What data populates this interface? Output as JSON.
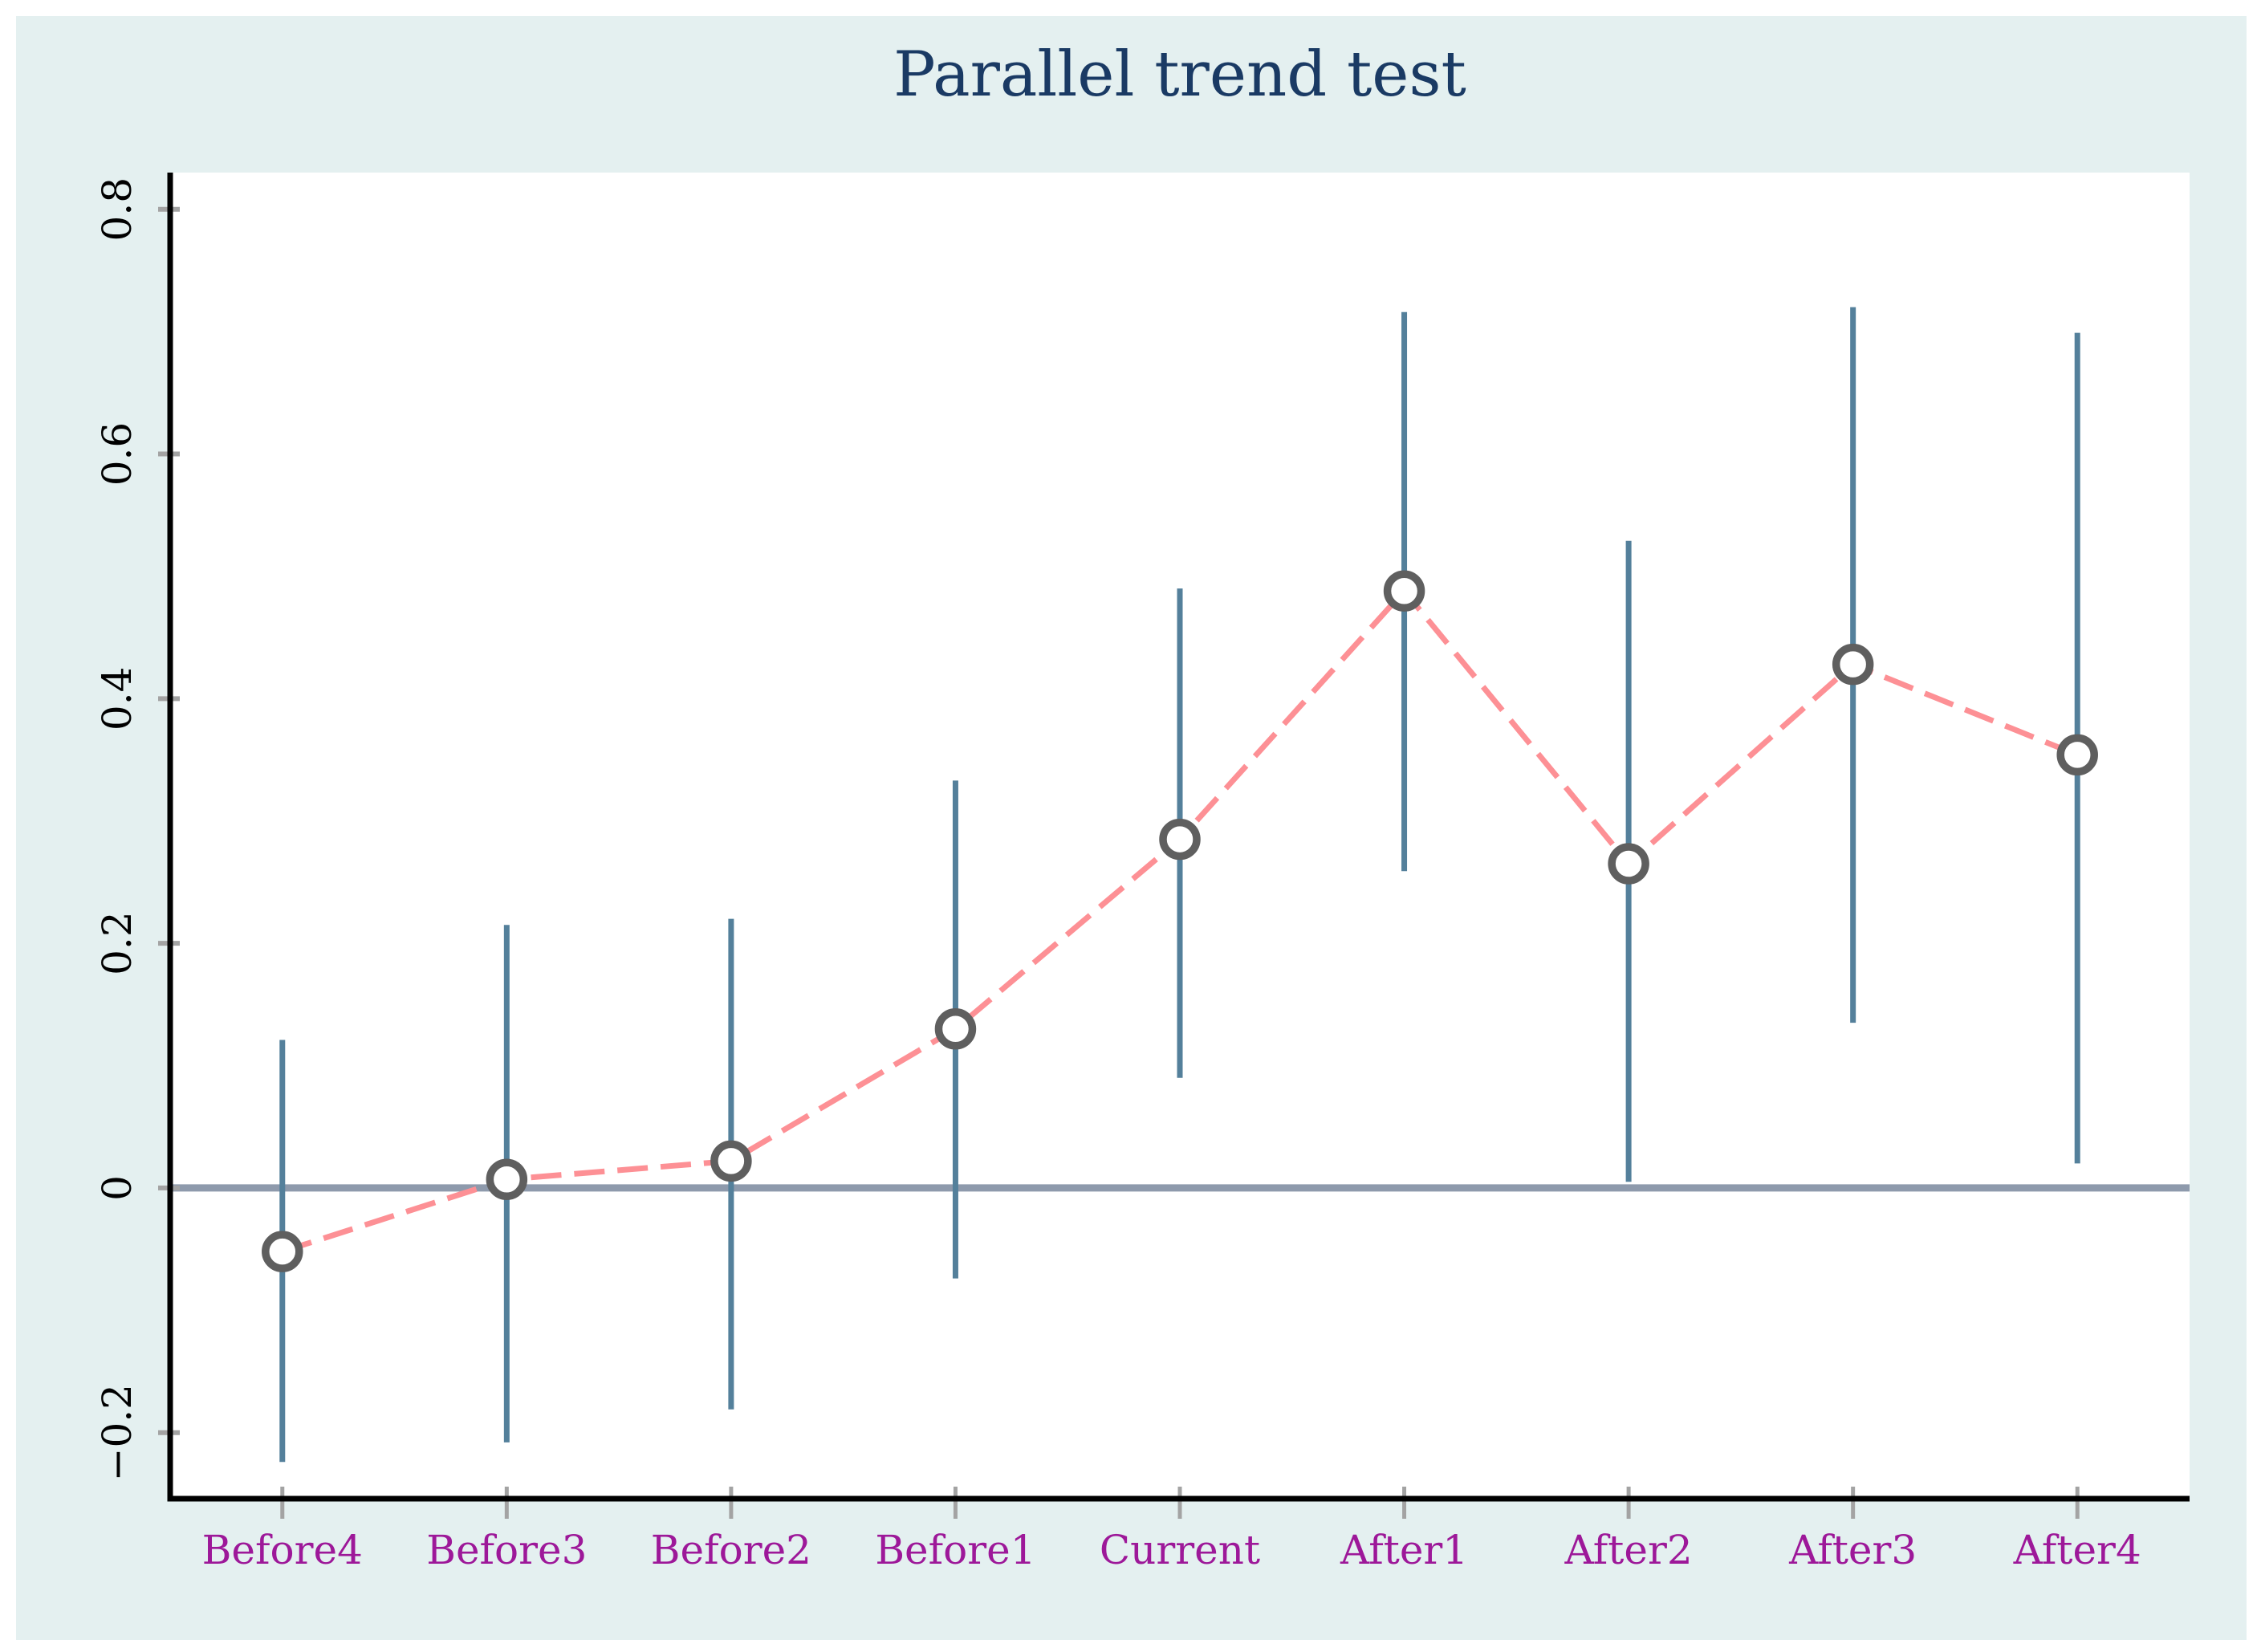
{
  "chart_data": {
    "type": "line",
    "subtype": "coefficient-plot-with-confidence-intervals",
    "title": "Parallel trend test",
    "categories": [
      "Before4",
      "Before3",
      "Before2",
      "Before1",
      "Current",
      "After1",
      "After2",
      "After3",
      "After4"
    ],
    "series": [
      {
        "name": "estimate",
        "role": "point",
        "values": [
          -0.052,
          0.007,
          0.022,
          0.13,
          0.285,
          0.488,
          0.265,
          0.428,
          0.354
        ]
      },
      {
        "name": "ci_lower",
        "role": "ci_lower",
        "values": [
          -0.224,
          -0.208,
          -0.181,
          -0.074,
          0.09,
          0.259,
          0.005,
          0.135,
          0.02
        ]
      },
      {
        "name": "ci_upper",
        "role": "ci_upper",
        "values": [
          0.121,
          0.215,
          0.22,
          0.333,
          0.49,
          0.716,
          0.529,
          0.72,
          0.699
        ]
      }
    ],
    "xlabel": "",
    "ylabel": "",
    "ylim": [
      -0.254,
      0.83
    ],
    "yticks": [
      -0.2,
      0,
      0.2,
      0.4,
      0.6,
      0.8
    ],
    "ytick_labels": [
      "−0.2",
      "0",
      "0.2",
      "0.4",
      "0.6",
      "0.8"
    ],
    "baseline": 0,
    "grid": false,
    "legend": false,
    "marker": "open-circle",
    "line_style": "dashed",
    "colors": {
      "figure_bg": "#e4f0f0",
      "plot_bg": "#ffffff",
      "title": "#1a3a64",
      "x_labels": "#9d1899",
      "y_labels": "#000000",
      "axis": "#000000",
      "tick": "#a3a3a3",
      "zero_line": "#8e9aac",
      "ci_line": "#54809b",
      "trend_line": "#fd9095",
      "marker_stroke": "#5f5f5f",
      "marker_fill": "#ffffff"
    }
  }
}
